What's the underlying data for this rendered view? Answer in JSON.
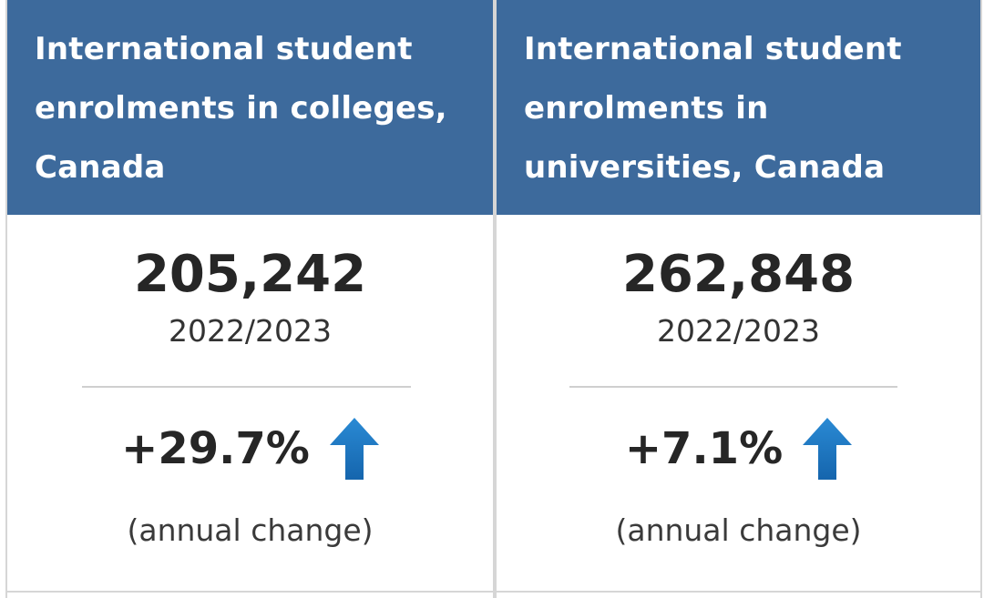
{
  "cards": [
    {
      "title": "International student enrolments in colleges, Canada",
      "value": "205,242",
      "period": "2022/2023",
      "change": "+29.7%",
      "change_direction_icon": "arrow-up-icon",
      "note": "(annual change)"
    },
    {
      "title": "International student enrolments in universities, Canada",
      "value": "262,848",
      "period": "2022/2023",
      "change": "+7.1%",
      "change_direction_icon": "arrow-up-icon",
      "note": "(annual change)"
    }
  ],
  "colors": {
    "header_background": "#3d6a9c",
    "header_text": "#ffffff",
    "arrow": "#1f7ac3",
    "value_text": "#262626"
  }
}
